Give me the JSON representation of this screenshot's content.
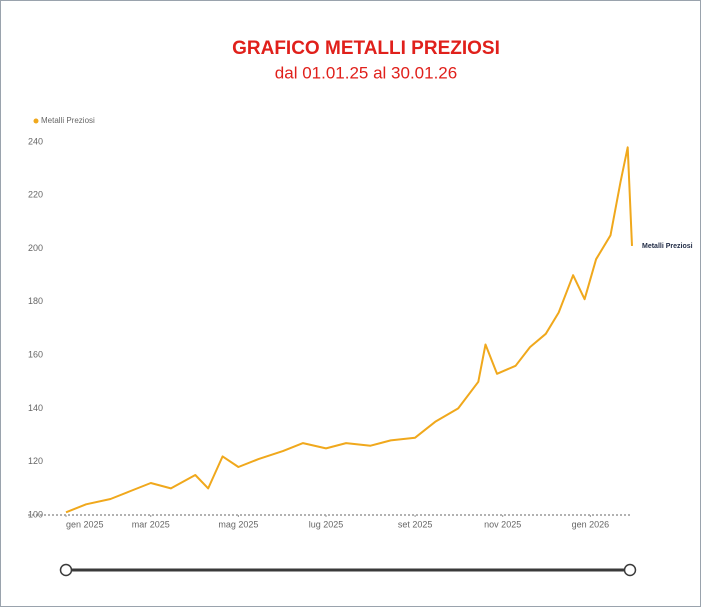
{
  "chart_data": {
    "type": "line",
    "title": "GRAFICO METALLI PREZIOSI",
    "subtitle": "dal 01.01.25 al 30.01.26",
    "x": [
      "2025-01-01",
      "2025-01-15",
      "2025-02-01",
      "2025-02-15",
      "2025-03-01",
      "2025-03-15",
      "2025-04-01",
      "2025-04-10",
      "2025-04-20",
      "2025-05-01",
      "2025-05-15",
      "2025-06-01",
      "2025-06-15",
      "2025-07-01",
      "2025-07-15",
      "2025-08-01",
      "2025-08-15",
      "2025-09-01",
      "2025-09-15",
      "2025-10-01",
      "2025-10-15",
      "2025-10-20",
      "2025-10-28",
      "2025-11-10",
      "2025-11-20",
      "2025-12-01",
      "2025-12-10",
      "2025-12-20",
      "2025-12-28",
      "2026-01-05",
      "2026-01-15",
      "2026-01-22",
      "2026-01-27",
      "2026-01-30"
    ],
    "series": [
      {
        "name": "Metalli Preziosi",
        "color": "#f0a81c",
        "values": [
          101,
          104,
          106,
          109,
          112,
          110,
          115,
          110,
          122,
          118,
          121,
          124,
          127,
          125,
          127,
          126,
          128,
          129,
          135,
          140,
          150,
          164,
          153,
          156,
          163,
          168,
          176,
          190,
          181,
          196,
          205,
          225,
          238,
          201
        ]
      }
    ],
    "xlim": [
      "2025-01-01",
      "2026-01-30"
    ],
    "xticks": [
      {
        "value": "2025-01-01",
        "label": "gen 2025"
      },
      {
        "value": "2025-03-01",
        "label": "mar 2025"
      },
      {
        "value": "2025-05-01",
        "label": "mag 2025"
      },
      {
        "value": "2025-07-01",
        "label": "lug 2025"
      },
      {
        "value": "2025-09-01",
        "label": "set 2025"
      },
      {
        "value": "2025-11-01",
        "label": "nov 2025"
      },
      {
        "value": "2026-01-01",
        "label": "gen 2026"
      }
    ],
    "ylim": [
      100,
      240
    ],
    "yticks": [
      100,
      120,
      140,
      160,
      180,
      200,
      220,
      240
    ],
    "legend": "top-left"
  }
}
